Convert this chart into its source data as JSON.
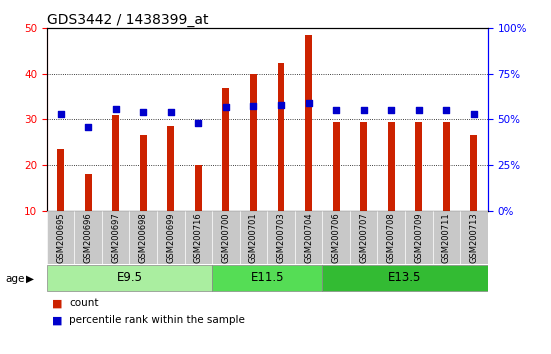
{
  "title": "GDS3442 / 1438399_at",
  "samples": [
    "GSM200695",
    "GSM200696",
    "GSM200697",
    "GSM200698",
    "GSM200699",
    "GSM200716",
    "GSM200700",
    "GSM200701",
    "GSM200703",
    "GSM200704",
    "GSM200706",
    "GSM200707",
    "GSM200708",
    "GSM200709",
    "GSM200711",
    "GSM200713"
  ],
  "count": [
    23.5,
    18.0,
    31.0,
    26.5,
    28.5,
    20.0,
    37.0,
    40.0,
    42.5,
    48.5,
    29.5,
    29.5,
    29.5,
    29.5,
    29.5,
    26.5
  ],
  "percentile_pct": [
    53.0,
    46.0,
    56.0,
    54.0,
    54.0,
    48.0,
    57.0,
    57.5,
    58.0,
    59.0,
    55.0,
    55.0,
    55.0,
    55.0,
    55.0,
    53.0
  ],
  "groups": [
    {
      "label": "E9.5",
      "start": 0,
      "end": 6,
      "color": "#aaeea0"
    },
    {
      "label": "E11.5",
      "start": 6,
      "end": 10,
      "color": "#55dd55"
    },
    {
      "label": "E13.5",
      "start": 10,
      "end": 16,
      "color": "#33bb33"
    }
  ],
  "ylim_left": [
    10,
    50
  ],
  "ylim_right": [
    0,
    100
  ],
  "yticks_left": [
    10,
    20,
    30,
    40,
    50
  ],
  "yticks_right": [
    0,
    25,
    50,
    75,
    100
  ],
  "bar_color": "#cc2200",
  "dot_color": "#0000cc",
  "bg_color": "#ffffff",
  "cell_bg": "#c8c8c8",
  "legend_count": "count",
  "legend_pct": "percentile rank within the sample",
  "title_fontsize": 10,
  "bar_width": 0.25,
  "dot_size": 18
}
